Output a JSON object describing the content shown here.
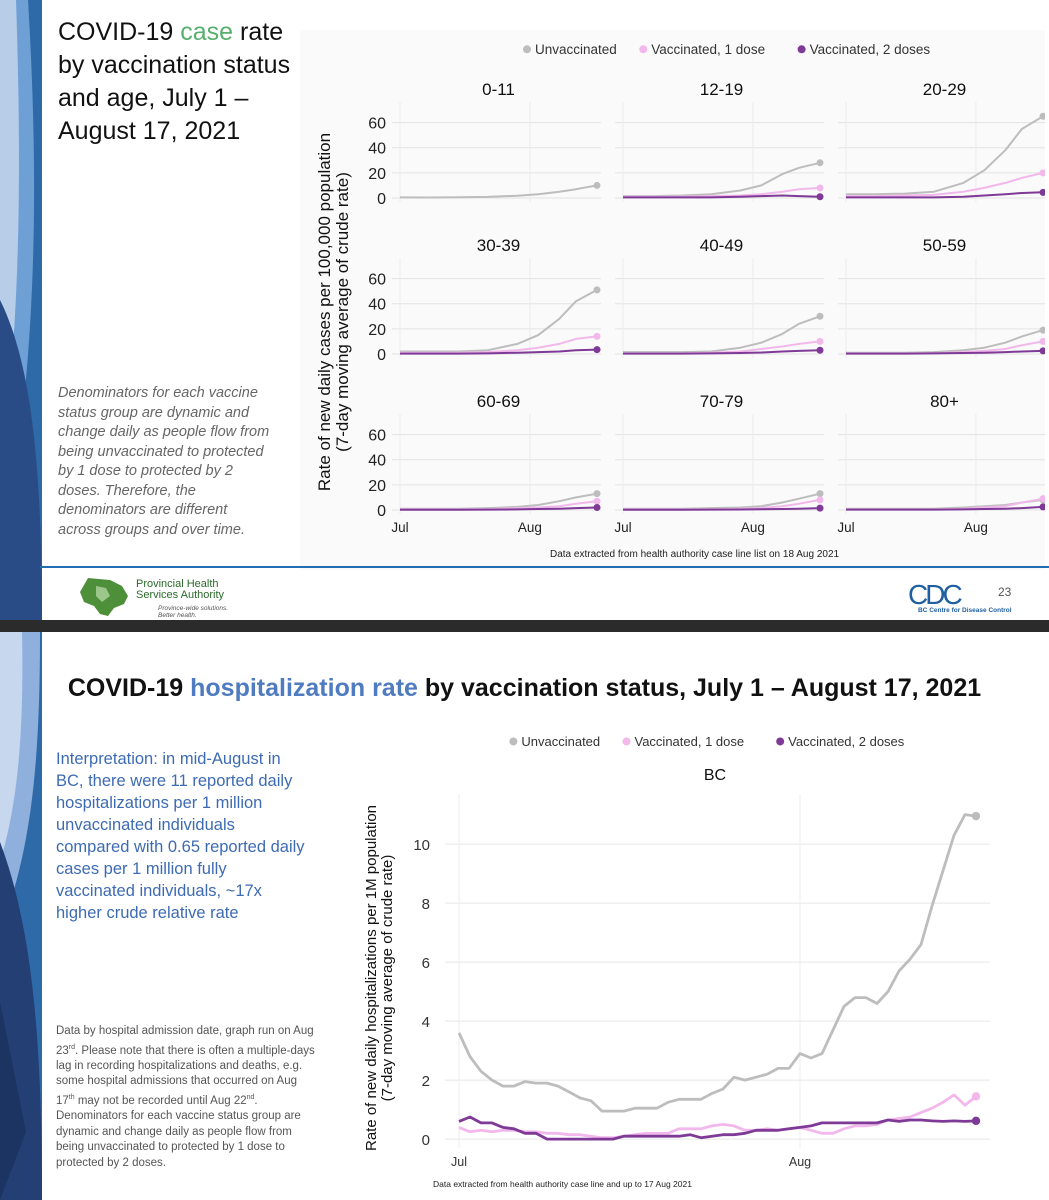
{
  "slide1": {
    "title_pre": "COVID-19 ",
    "title_accent": "case",
    "title_post": " rate by vaccination status and age, July 1 – August 17, 2021",
    "note": "Denominators for each vaccine status group are dynamic and change daily as people flow from being unvaccinated to protected by 1 dose to protected by 2 doses. Therefore, the denominators are different across groups and over time.",
    "footer": {
      "org_line1": "Provincial Health",
      "org_line2": "Services Authority",
      "org_tag1": "Province-wide solutions.",
      "org_tag2": "Better health.",
      "page_number": "23",
      "bccdc_logo": "CDC",
      "bccdc_name": "BC Centre for Disease Control"
    }
  },
  "slide2": {
    "title_pre": "COVID-19 ",
    "title_accent": "hospitalization rate",
    "title_post": " by vaccination status, July 1 – August 17, 2021",
    "interpretation": "Interpretation: in mid-August in BC, there were 11 reported daily hospitalizations per 1 million unvaccinated individuals compared with 0.65 reported daily cases per 1 million fully vaccinated individuals, ~17x higher crude relative rate",
    "note_p1": "Data by hospital admission date, graph run on Aug 23",
    "note_s1": "rd",
    "note_p2": ". Please note that there is often a multiple-days lag in recording hospitalizations and deaths, e.g. some hospital admissions that occurred on Aug 17",
    "note_s2": "th",
    "note_p3": " may not be recorded until Aug 22",
    "note_s3": "nd",
    "note_p4": ". Denominators for each vaccine status group are dynamic and change daily as people flow from being unvaccinated to protected by 1 dose to protected by 2 doses."
  },
  "colors": {
    "unvaccinated": "#bdbdbd",
    "one_dose": "#f2b8ec",
    "two_doses": "#7e3a96",
    "slide_accent_green": "#56b06c",
    "slide_accent_blue": "#4f7bc0"
  },
  "chart_data": [
    {
      "type": "line",
      "title": "",
      "legend": [
        "Unvaccinated",
        "Vaccinated, 1 dose",
        "Vaccinated, 2 doses"
      ],
      "legend_position": "top",
      "ylabel": "Rate of new daily cases per 100,000 population\n(7-day moving average of crude rate)",
      "ylim": [
        0,
        70
      ],
      "yticks": [
        0,
        20,
        40,
        60
      ],
      "x_domain": [
        "2021-07-01",
        "2021-08-17"
      ],
      "xticks": [
        {
          "date": "2021-07-01",
          "label": "Jul"
        },
        {
          "date": "2021-08-01",
          "label": "Aug"
        }
      ],
      "grid": true,
      "footnote": "Data extracted from health authority case line list on 18 Aug 2021",
      "panel_dates": [
        "2021-07-01",
        "2021-07-08",
        "2021-07-15",
        "2021-07-22",
        "2021-07-29",
        "2021-08-03",
        "2021-08-08",
        "2021-08-12",
        "2021-08-17"
      ],
      "panels": [
        {
          "name": "0-11",
          "series": [
            {
              "name": "Unvaccinated",
              "values": [
                0.5,
                0.4,
                0.6,
                0.9,
                1.8,
                3,
                5,
                7,
                10
              ]
            },
            {
              "name": "Vaccinated, 1 dose",
              "values": [
                null,
                null,
                null,
                null,
                null,
                null,
                null,
                null,
                null
              ]
            },
            {
              "name": "Vaccinated, 2 doses",
              "values": [
                null,
                null,
                null,
                null,
                null,
                null,
                null,
                null,
                null
              ]
            }
          ]
        },
        {
          "name": "12-19",
          "series": [
            {
              "name": "Unvaccinated",
              "values": [
                1.5,
                1.5,
                2,
                3,
                6,
                10,
                19,
                24,
                28
              ]
            },
            {
              "name": "Vaccinated, 1 dose",
              "values": [
                1,
                1,
                1,
                1.5,
                2,
                3,
                5,
                7,
                8
              ]
            },
            {
              "name": "Vaccinated, 2 doses",
              "values": [
                0.5,
                0.5,
                0.5,
                0.5,
                1,
                1.5,
                2,
                1.5,
                1
              ]
            }
          ]
        },
        {
          "name": "20-29",
          "series": [
            {
              "name": "Unvaccinated",
              "values": [
                3,
                3,
                3.5,
                5,
                12,
                22,
                38,
                55,
                65
              ]
            },
            {
              "name": "Vaccinated, 1 dose",
              "values": [
                1.5,
                1.5,
                2,
                2.5,
                5,
                8,
                12,
                16,
                20
              ]
            },
            {
              "name": "Vaccinated, 2 doses",
              "values": [
                0.5,
                0.5,
                0.5,
                0.5,
                1,
                2,
                3,
                4,
                4.5
              ]
            }
          ]
        },
        {
          "name": "30-39",
          "series": [
            {
              "name": "Unvaccinated",
              "values": [
                2,
                2,
                2,
                3,
                8,
                15,
                28,
                42,
                51
              ]
            },
            {
              "name": "Vaccinated, 1 dose",
              "values": [
                1,
                1,
                1,
                1.5,
                3,
                5,
                8,
                12,
                14
              ]
            },
            {
              "name": "Vaccinated, 2 doses",
              "values": [
                0.3,
                0.3,
                0.3,
                0.5,
                1,
                1.5,
                2,
                3,
                3.5
              ]
            }
          ]
        },
        {
          "name": "40-49",
          "series": [
            {
              "name": "Unvaccinated",
              "values": [
                1.5,
                1.5,
                1.5,
                2,
                5,
                9,
                16,
                24,
                30
              ]
            },
            {
              "name": "Vaccinated, 1 dose",
              "values": [
                0.5,
                0.5,
                0.5,
                1,
                2,
                4,
                6,
                8,
                10
              ]
            },
            {
              "name": "Vaccinated, 2 doses",
              "values": [
                0.3,
                0.3,
                0.3,
                0.5,
                0.8,
                1.2,
                2,
                2.5,
                3
              ]
            }
          ]
        },
        {
          "name": "50-59",
          "series": [
            {
              "name": "Unvaccinated",
              "values": [
                1,
                1,
                1,
                1.5,
                3,
                5,
                9,
                14,
                19
              ]
            },
            {
              "name": "Vaccinated, 1 dose",
              "values": [
                0.5,
                0.5,
                0.5,
                0.7,
                1.5,
                2.5,
                4,
                7,
                10
              ]
            },
            {
              "name": "Vaccinated, 2 doses",
              "values": [
                0.3,
                0.3,
                0.3,
                0.5,
                0.8,
                1,
                1.5,
                2,
                2.5
              ]
            }
          ]
        },
        {
          "name": "60-69",
          "series": [
            {
              "name": "Unvaccinated",
              "values": [
                1,
                1,
                1,
                1.5,
                2.5,
                4,
                7,
                10,
                13
              ]
            },
            {
              "name": "Vaccinated, 1 dose",
              "values": [
                0.5,
                0.5,
                0.5,
                0.7,
                1.5,
                2,
                3,
                5,
                7
              ]
            },
            {
              "name": "Vaccinated, 2 doses",
              "values": [
                0.2,
                0.2,
                0.2,
                0.3,
                0.5,
                0.8,
                1,
                1.5,
                2
              ]
            }
          ]
        },
        {
          "name": "70-79",
          "series": [
            {
              "name": "Unvaccinated",
              "values": [
                1,
                1,
                1,
                1.5,
                2,
                3,
                6,
                9,
                13
              ]
            },
            {
              "name": "Vaccinated, 1 dose",
              "values": [
                0.5,
                0.5,
                0.5,
                0.5,
                1,
                1.5,
                3,
                5,
                8
              ]
            },
            {
              "name": "Vaccinated, 2 doses",
              "values": [
                0.2,
                0.2,
                0.2,
                0.3,
                0.4,
                0.6,
                0.8,
                1,
                1.5
              ]
            }
          ]
        },
        {
          "name": "80+",
          "series": [
            {
              "name": "Unvaccinated",
              "values": [
                1,
                1,
                1,
                1,
                2,
                3,
                4,
                6,
                8
              ]
            },
            {
              "name": "Vaccinated, 1 dose",
              "values": [
                0.5,
                0.5,
                0.5,
                0.5,
                1,
                2,
                3,
                6,
                9
              ]
            },
            {
              "name": "Vaccinated, 2 doses",
              "values": [
                0.3,
                0.3,
                0.3,
                0.3,
                0.5,
                0.8,
                1,
                1.5,
                2.5
              ]
            }
          ]
        }
      ]
    },
    {
      "type": "line",
      "title": "BC",
      "legend": [
        "Unvaccinated",
        "Vaccinated, 1 dose",
        "Vaccinated, 2 doses"
      ],
      "legend_position": "top",
      "ylabel": "Rate of new daily hospitalizations per 1M population\n(7-day moving average of crude rate)",
      "ylim": [
        -0.3,
        11.7
      ],
      "yticks": [
        0,
        2,
        4,
        6,
        8,
        10
      ],
      "x_domain": [
        "2021-07-01",
        "2021-08-17"
      ],
      "xticks": [
        {
          "date": "2021-07-01",
          "label": "Jul"
        },
        {
          "date": "2021-08-01",
          "label": "Aug"
        }
      ],
      "grid": true,
      "footnote": "Data extracted from health authority case line and up to 17 Aug 2021",
      "dates": [
        "2021-07-01",
        "2021-07-02",
        "2021-07-03",
        "2021-07-04",
        "2021-07-05",
        "2021-07-06",
        "2021-07-07",
        "2021-07-08",
        "2021-07-09",
        "2021-07-10",
        "2021-07-11",
        "2021-07-12",
        "2021-07-13",
        "2021-07-14",
        "2021-07-15",
        "2021-07-16",
        "2021-07-17",
        "2021-07-18",
        "2021-07-19",
        "2021-07-20",
        "2021-07-21",
        "2021-07-22",
        "2021-07-23",
        "2021-07-24",
        "2021-07-25",
        "2021-07-26",
        "2021-07-27",
        "2021-07-28",
        "2021-07-29",
        "2021-07-30",
        "2021-07-31",
        "2021-08-01",
        "2021-08-02",
        "2021-08-03",
        "2021-08-04",
        "2021-08-05",
        "2021-08-06",
        "2021-08-07",
        "2021-08-08",
        "2021-08-09",
        "2021-08-10",
        "2021-08-11",
        "2021-08-12",
        "2021-08-13",
        "2021-08-14",
        "2021-08-15",
        "2021-08-16",
        "2021-08-17"
      ],
      "series": [
        {
          "name": "Unvaccinated",
          "values": [
            3.6,
            2.8,
            2.3,
            2.0,
            1.8,
            1.8,
            1.95,
            1.9,
            1.9,
            1.8,
            1.6,
            1.4,
            1.3,
            0.95,
            0.95,
            0.95,
            1.05,
            1.05,
            1.05,
            1.25,
            1.35,
            1.35,
            1.35,
            1.55,
            1.7,
            2.1,
            2.0,
            2.1,
            2.2,
            2.4,
            2.4,
            2.9,
            2.75,
            2.9,
            3.7,
            4.5,
            4.8,
            4.8,
            4.6,
            5.0,
            5.7,
            6.1,
            6.6,
            7.9,
            9.1,
            10.3,
            11.0,
            10.95
          ]
        },
        {
          "name": "Vaccinated, 1 dose",
          "values": [
            0.4,
            0.25,
            0.3,
            0.25,
            0.3,
            0.3,
            0.25,
            0.25,
            0.2,
            0.2,
            0.15,
            0.15,
            0.1,
            0.05,
            0.05,
            0.1,
            0.15,
            0.2,
            0.2,
            0.2,
            0.35,
            0.35,
            0.35,
            0.45,
            0.5,
            0.45,
            0.3,
            0.3,
            0.35,
            0.3,
            0.35,
            0.4,
            0.3,
            0.2,
            0.2,
            0.35,
            0.45,
            0.45,
            0.5,
            0.65,
            0.7,
            0.75,
            0.9,
            1.05,
            1.25,
            1.5,
            1.15,
            1.45
          ]
        },
        {
          "name": "Vaccinated, 2 doses",
          "values": [
            0.6,
            0.75,
            0.55,
            0.55,
            0.4,
            0.35,
            0.2,
            0.2,
            0.0,
            0.0,
            0.0,
            0.0,
            0.0,
            0.0,
            0.0,
            0.1,
            0.1,
            0.1,
            0.1,
            0.1,
            0.1,
            0.15,
            0.05,
            0.1,
            0.15,
            0.15,
            0.2,
            0.3,
            0.3,
            0.3,
            0.35,
            0.4,
            0.45,
            0.55,
            0.55,
            0.55,
            0.55,
            0.55,
            0.55,
            0.65,
            0.6,
            0.65,
            0.65,
            0.62,
            0.6,
            0.62,
            0.6,
            0.62
          ]
        }
      ]
    }
  ]
}
